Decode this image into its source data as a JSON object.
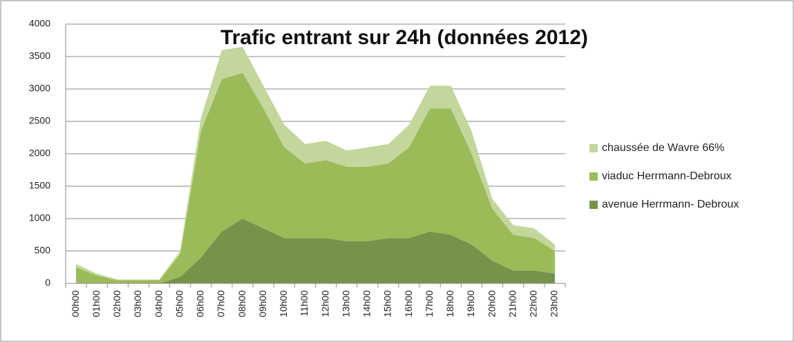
{
  "chart_data": {
    "type": "stacked_area",
    "title": "Trafic entrant sur 24h (données 2012)",
    "categories": [
      "00h00",
      "01h00",
      "02h00",
      "03h00",
      "04h00",
      "05h00",
      "06h00",
      "07h00",
      "08h00",
      "09h00",
      "10h00",
      "11h00",
      "12h00",
      "13h00",
      "14h00",
      "15h00",
      "16h00",
      "17h00",
      "18h00",
      "19h00",
      "20h00",
      "21h00",
      "22h00",
      "23h00"
    ],
    "series": [
      {
        "name": "avenue Herrmann- Debroux",
        "color": "#77934a",
        "values": [
          0,
          0,
          0,
          0,
          0,
          100,
          400,
          800,
          1000,
          850,
          700,
          700,
          700,
          650,
          650,
          700,
          700,
          800,
          750,
          600,
          350,
          200,
          200,
          150
        ]
      },
      {
        "name": "viaduc Herrmann-Debroux",
        "color": "#9bbb59",
        "values": [
          250,
          120,
          50,
          50,
          50,
          350,
          1950,
          2350,
          2250,
          1850,
          1400,
          1150,
          1200,
          1150,
          1150,
          1150,
          1400,
          1900,
          1950,
          1400,
          800,
          550,
          500,
          350
        ]
      },
      {
        "name": "chaussée de Wavre 66%",
        "color": "#c3d69b",
        "values": [
          50,
          30,
          10,
          10,
          10,
          50,
          200,
          450,
          400,
          350,
          350,
          300,
          300,
          250,
          300,
          300,
          350,
          350,
          350,
          350,
          150,
          150,
          150,
          100
        ]
      }
    ],
    "ylim": [
      0,
      4000
    ],
    "yticks": [
      0,
      500,
      1000,
      1500,
      2000,
      2500,
      3000,
      3500,
      4000
    ],
    "grid": true
  }
}
